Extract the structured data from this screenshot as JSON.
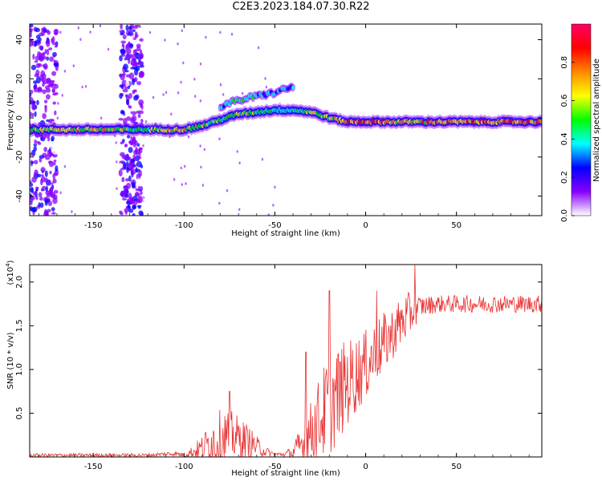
{
  "title": "C2E3.2023.184.07.30.R22",
  "chart_data": [
    {
      "type": "heatmap",
      "name": "spectrogram",
      "xlabel": "Height of straight line (km)",
      "ylabel": "Frequency (Hz)",
      "xlim": [
        -185,
        97
      ],
      "ylim": [
        -50,
        48
      ],
      "xticks": [
        "-150",
        "-100",
        "-50",
        "0",
        "50"
      ],
      "xtick_values": [
        -150,
        -100,
        -50,
        0,
        50
      ],
      "yticks": [
        "-40",
        "-20",
        "0",
        "20",
        "40"
      ],
      "ytick_values": [
        -40,
        -20,
        0,
        20,
        40
      ],
      "colorbar": {
        "label": "Normalized spectral amplitude",
        "range": [
          0,
          1
        ],
        "ticks": [
          "0.0",
          "0.2",
          "0.4",
          "0.6",
          "0.8"
        ],
        "tick_values": [
          0.0,
          0.2,
          0.4,
          0.6,
          0.8
        ],
        "colors": [
          "#ffffff",
          "#8800ff",
          "#0000ff",
          "#00ffff",
          "#00ff00",
          "#ffff00",
          "#ff8800",
          "#ff0000",
          "#ff0066"
        ]
      },
      "ridge": {
        "x": [
          -185,
          -150,
          -125,
          -110,
          -100,
          -90,
          -80,
          -70,
          -60,
          -50,
          -40,
          -30,
          -20,
          -10,
          0,
          10,
          20,
          40,
          60,
          80,
          97
        ],
        "freq": [
          -6,
          -6,
          -6,
          -6,
          -6,
          -4,
          -1,
          2,
          3,
          4,
          4,
          3,
          0,
          -2,
          -2,
          -2,
          -2,
          -2,
          -2,
          -2,
          -2
        ],
        "amplitude": [
          0.55,
          0.7,
          0.5,
          0.6,
          0.75,
          0.55,
          0.5,
          0.55,
          0.5,
          0.45,
          0.45,
          0.55,
          0.65,
          0.75,
          0.8,
          0.75,
          0.7,
          0.75,
          0.75,
          0.8,
          0.7
        ]
      },
      "secondary_ridge": {
        "x": [
          -80,
          -70,
          -60,
          -50,
          -40
        ],
        "freq": [
          6,
          9,
          11,
          13,
          16
        ],
        "amplitude": [
          0.4,
          0.45,
          0.4,
          0.35,
          0.3
        ]
      },
      "noise_bands_x": [
        [
          -185,
          -170
        ],
        [
          -135,
          -123
        ]
      ]
    },
    {
      "type": "line",
      "name": "snr",
      "xlabel": "Height of straight line (km)",
      "ylabel": "SNR (10 * v/v)",
      "y_multiplier": "(x10",
      "y_multiplier_exp": "4",
      "y_multiplier_close": ")",
      "xlim": [
        -185,
        97
      ],
      "ylim": [
        0,
        2.2
      ],
      "xticks": [
        "-150",
        "-100",
        "-50",
        "0",
        "50"
      ],
      "xtick_values": [
        -150,
        -100,
        -50,
        0,
        50
      ],
      "yticks": [
        "0.5",
        "1.0",
        "1.5",
        "2.0"
      ],
      "ytick_values": [
        0.5,
        1.0,
        1.5,
        2.0
      ],
      "color": "#e83232",
      "envelope": {
        "x": [
          -185,
          -120,
          -105,
          -100,
          -95,
          -90,
          -85,
          -80,
          -75,
          -70,
          -65,
          -60,
          -55,
          -50,
          -45,
          -40,
          -35,
          -30,
          -25,
          -20,
          -15,
          -10,
          -5,
          0,
          5,
          10,
          15,
          20,
          25,
          30,
          40,
          50,
          60,
          70,
          80,
          97
        ],
        "base": [
          0.02,
          0.02,
          0.04,
          0.02,
          0.06,
          0.1,
          0.18,
          0.2,
          0.25,
          0.22,
          0.18,
          0.12,
          0.06,
          0.03,
          0.03,
          0.05,
          0.15,
          0.3,
          0.45,
          0.6,
          0.72,
          0.85,
          0.95,
          1.05,
          1.18,
          1.3,
          1.42,
          1.55,
          1.65,
          1.72,
          1.75,
          1.75,
          1.75,
          1.75,
          1.75,
          1.75
        ],
        "amp": [
          0.02,
          0.02,
          0.03,
          0.02,
          0.08,
          0.15,
          0.25,
          0.35,
          0.3,
          0.25,
          0.2,
          0.12,
          0.06,
          0.02,
          0.03,
          0.08,
          0.25,
          0.35,
          0.5,
          0.6,
          0.55,
          0.5,
          0.45,
          0.4,
          0.4,
          0.35,
          0.3,
          0.3,
          0.25,
          0.12,
          0.1,
          0.1,
          0.1,
          0.1,
          0.1,
          0.1
        ]
      },
      "peaks": [
        {
          "x": -75,
          "y": 0.75
        },
        {
          "x": -33,
          "y": 1.2
        },
        {
          "x": -20,
          "y": 1.9
        },
        {
          "x": 6,
          "y": 1.9
        },
        {
          "x": 27,
          "y": 2.2
        }
      ]
    }
  ]
}
